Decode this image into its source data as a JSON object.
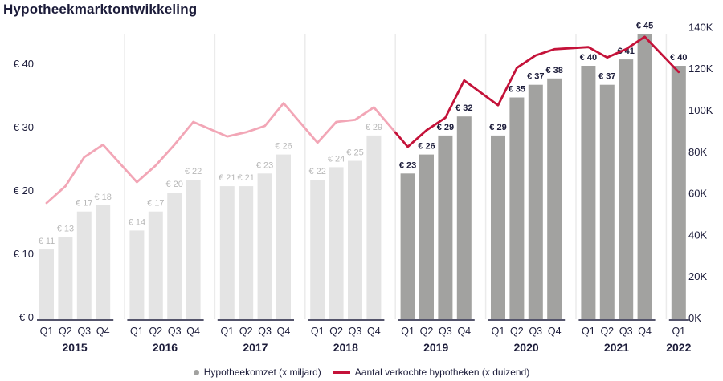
{
  "chart_data": {
    "type": "bar+line combo",
    "title": "Hypotheekmarktontwikkeling",
    "value_prefix": "€ ",
    "years": [
      {
        "year": "2015",
        "quarters": [
          "Q1",
          "Q2",
          "Q3",
          "Q4"
        ]
      },
      {
        "year": "2016",
        "quarters": [
          "Q1",
          "Q2",
          "Q3",
          "Q4"
        ]
      },
      {
        "year": "2017",
        "quarters": [
          "Q1",
          "Q2",
          "Q3",
          "Q4"
        ]
      },
      {
        "year": "2018",
        "quarters": [
          "Q1",
          "Q2",
          "Q3",
          "Q4"
        ]
      },
      {
        "year": "2019",
        "quarters": [
          "Q1",
          "Q2",
          "Q3",
          "Q4"
        ]
      },
      {
        "year": "2020",
        "quarters": [
          "Q1",
          "Q2",
          "Q3",
          "Q4"
        ]
      },
      {
        "year": "2021",
        "quarters": [
          "Q1",
          "Q2",
          "Q3",
          "Q4"
        ]
      },
      {
        "year": "2022",
        "quarters": [
          "Q1"
        ]
      }
    ],
    "bar_series": {
      "name": "Hypotheekomzet (x miljard)",
      "values": [
        11,
        13,
        17,
        18,
        14,
        17,
        20,
        22,
        21,
        21,
        23,
        26,
        22,
        24,
        25,
        29,
        23,
        26,
        29,
        32,
        29,
        35,
        37,
        38,
        40,
        37,
        41,
        45,
        40
      ],
      "labels": [
        "€ 11",
        "€ 13",
        "€ 17",
        "€ 18",
        "€ 14",
        "€ 17",
        "€ 20",
        "€ 22",
        "€ 21",
        "€ 21",
        "€ 23",
        "€ 26",
        "€ 22",
        "€ 24",
        "€ 25",
        "€ 29",
        "€ 23",
        "€ 26",
        "€ 29",
        "€ 32",
        "€ 29",
        "€ 35",
        "€ 37",
        "€ 38",
        "€ 40",
        "€ 37",
        "€ 41",
        "€ 45",
        "€ 40"
      ]
    },
    "line_series": {
      "name": "Aantal verkochte hypotheken (x duizend)",
      "values": [
        56,
        64,
        78,
        84,
        66,
        74,
        84,
        95,
        88,
        90,
        93,
        104,
        85,
        95,
        96,
        102,
        83,
        91,
        97,
        115,
        103,
        121,
        127,
        130,
        131,
        126,
        130,
        136,
        119
      ]
    },
    "highlight_start_index": 16,
    "left_axis": {
      "labels": [
        "€ 0",
        "€ 10",
        "€ 20",
        "€ 30",
        "€ 40"
      ],
      "values": [
        0,
        10,
        20,
        30,
        40
      ]
    },
    "right_axis": {
      "labels": [
        "0K",
        "20K",
        "40K",
        "60K",
        "80K",
        "100K",
        "120K",
        "140K"
      ],
      "values": [
        0,
        20,
        40,
        60,
        80,
        100,
        120,
        140
      ]
    },
    "colors": {
      "text_dark": "#1c1c3a",
      "bar_light": "#e4e4e4",
      "bar_dark": "#a2a2a0",
      "bar_label_light": "#b8b8b8",
      "line_light": "#f2a6b6",
      "line_dark": "#c41239",
      "gridline": "#ebebeb",
      "baseline": "#1c1c3a"
    }
  }
}
